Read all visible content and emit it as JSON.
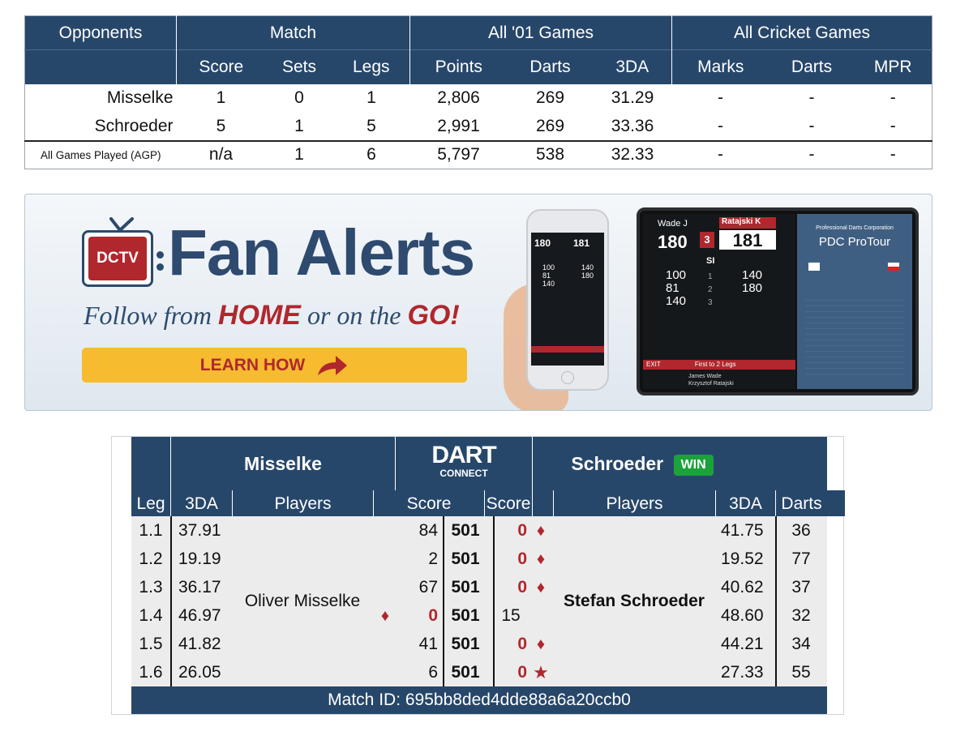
{
  "summary": {
    "groups": {
      "opponents": "Opponents",
      "match": "Match",
      "all01": "All '01 Games",
      "cricket": "All Cricket Games"
    },
    "columns": {
      "score": "Score",
      "sets": "Sets",
      "legs": "Legs",
      "points": "Points",
      "darts": "Darts",
      "tda": "3DA",
      "marks": "Marks",
      "cdarts": "Darts",
      "mpr": "MPR"
    },
    "rows": [
      {
        "name": "Misselke",
        "score": "1",
        "sets": "0",
        "legs": "1",
        "points": "2,806",
        "darts": "269",
        "tda": "31.29",
        "marks": "-",
        "cdarts": "-",
        "mpr": "-"
      },
      {
        "name": "Schroeder",
        "score": "5",
        "sets": "1",
        "legs": "5",
        "points": "2,991",
        "darts": "269",
        "tda": "33.36",
        "marks": "-",
        "cdarts": "-",
        "mpr": "-"
      },
      {
        "name": "All Games Played (AGP)",
        "score": "n/a",
        "sets": "1",
        "legs": "6",
        "points": "5,797",
        "darts": "538",
        "tda": "32.33",
        "marks": "-",
        "cdarts": "-",
        "mpr": "-"
      }
    ]
  },
  "banner": {
    "logo_text": "DCTV",
    "title": "Fan Alerts",
    "tagline_pre": "Follow from",
    "tagline_home": "HOME",
    "tagline_mid": "or on the",
    "tagline_go": "GO!",
    "button_label": "LEARN HOW",
    "colors": {
      "navy": "#2e4a6e",
      "red": "#b0272d",
      "yellow": "#f6bb2f"
    },
    "phone": {
      "p1": "180",
      "p2": "181",
      "lines": [
        "100",
        "81",
        "140"
      ],
      "right": [
        "140",
        "180"
      ]
    },
    "tablet": {
      "p1_name": "Wade J",
      "p1_score": "180",
      "p2_name": "Ratajski K",
      "p2_score": "181",
      "sets": "3",
      "si": "SI",
      "left_scores": [
        "100",
        "81",
        "140"
      ],
      "nums": [
        "1",
        "2",
        "3"
      ],
      "right_scores": [
        "140",
        "180"
      ],
      "org": "Professional Darts Corporation",
      "event": "PDC ProTour",
      "player_a": "James Wade",
      "player_b": "Krzysztof Ratajski",
      "footer": "First to 2 Legs",
      "exit": "EXIT"
    }
  },
  "scorecard": {
    "left_player": "Misselke",
    "right_player": "Schroeder",
    "win_label": "WIN",
    "logo_top": "DART",
    "logo_bottom": "CONNECT",
    "columns": {
      "leg": "Leg",
      "tda_l": "3DA",
      "players_l": "Players",
      "score_l": "Score",
      "score_r": "Score",
      "players_r": "Players",
      "tda_r": "3DA",
      "darts": "Darts"
    },
    "left_full": "Oliver Misselke",
    "right_full": "Stefan Schroeder",
    "start": "501",
    "legs": [
      {
        "leg": "1.1",
        "l3da": "37.91",
        "lscore": "84",
        "rscore": "0",
        "r3da": "41.75",
        "darts": "36",
        "winner": "right",
        "mark": "diamond"
      },
      {
        "leg": "1.2",
        "l3da": "19.19",
        "lscore": "2",
        "rscore": "0",
        "r3da": "19.52",
        "darts": "77",
        "winner": "right",
        "mark": "diamond"
      },
      {
        "leg": "1.3",
        "l3da": "36.17",
        "lscore": "67",
        "rscore": "0",
        "r3da": "40.62",
        "darts": "37",
        "winner": "right",
        "mark": "diamond"
      },
      {
        "leg": "1.4",
        "l3da": "46.97",
        "lscore": "0",
        "rscore": "15",
        "r3da": "48.60",
        "darts": "32",
        "winner": "left",
        "mark": "diamond"
      },
      {
        "leg": "1.5",
        "l3da": "41.82",
        "lscore": "41",
        "rscore": "0",
        "r3da": "44.21",
        "darts": "34",
        "winner": "right",
        "mark": "diamond"
      },
      {
        "leg": "1.6",
        "l3da": "26.05",
        "lscore": "6",
        "rscore": "0",
        "r3da": "27.33",
        "darts": "55",
        "winner": "right",
        "mark": "star"
      }
    ],
    "match_id": "Match ID: 695bb8ded4dde88a6a20ccb0"
  }
}
